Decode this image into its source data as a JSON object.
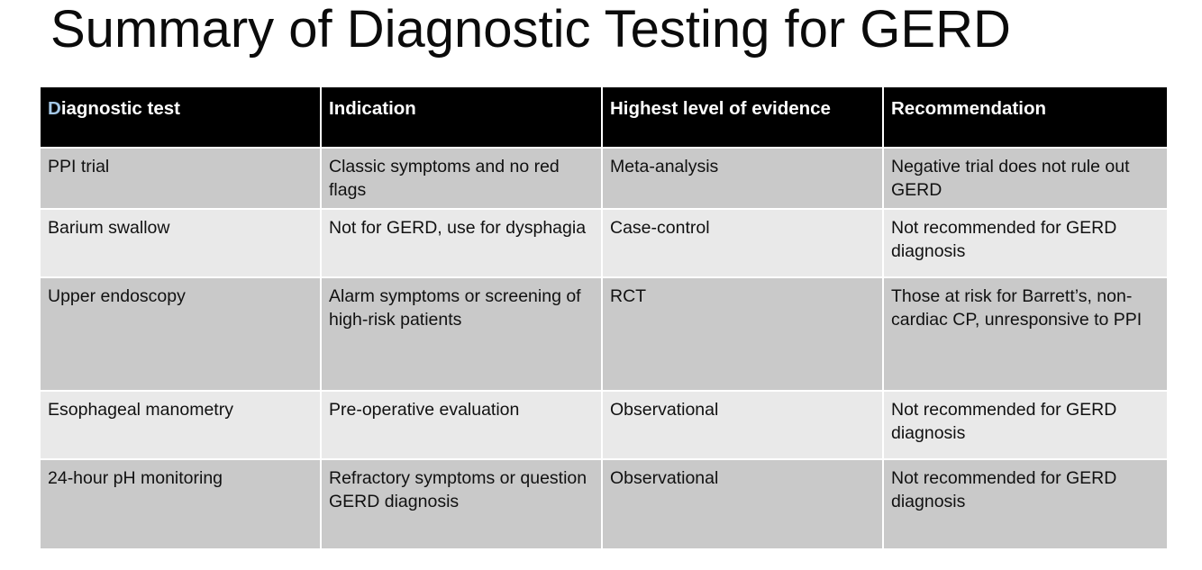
{
  "title": "Summary of Diagnostic Testing for GERD",
  "table": {
    "header": {
      "first_cell": {
        "highlight_letter": "D",
        "rest": "iagnostic test"
      },
      "columns": [
        "Diagnostic test",
        "Indication",
        "Highest level of evidence",
        "Recommendation"
      ]
    },
    "rows": [
      {
        "cells": [
          "PPI trial",
          "Classic symptoms and no red flags",
          "Meta-analysis",
          "Negative trial does not rule out GERD"
        ]
      },
      {
        "cells": [
          "Barium swallow",
          "Not for GERD, use for dysphagia",
          "Case-control",
          "Not recommended for GERD diagnosis"
        ]
      },
      {
        "cells": [
          "Upper endoscopy",
          "Alarm symptoms or screening of high-risk patients",
          "RCT",
          "Those at risk for Barrett’s, non-cardiac CP, unresponsive to PPI"
        ]
      },
      {
        "cells": [
          "Esophageal manometry",
          "Pre-operative evaluation",
          "Observational",
          "Not recommended for GERD diagnosis"
        ]
      },
      {
        "cells": [
          "24-hour pH monitoring",
          "Refractory symptoms or question GERD diagnosis",
          "Observational",
          "Not recommended for GERD diagnosis"
        ]
      }
    ],
    "colors": {
      "header_bg": "#000000",
      "header_text": "#ffffff",
      "row_dark": "#c9c9c9",
      "row_light": "#e9e9e9",
      "cell_separator": "#ffffff",
      "highlight_letter": "#a3c7e6",
      "title_text": "#0b0b0b"
    }
  }
}
